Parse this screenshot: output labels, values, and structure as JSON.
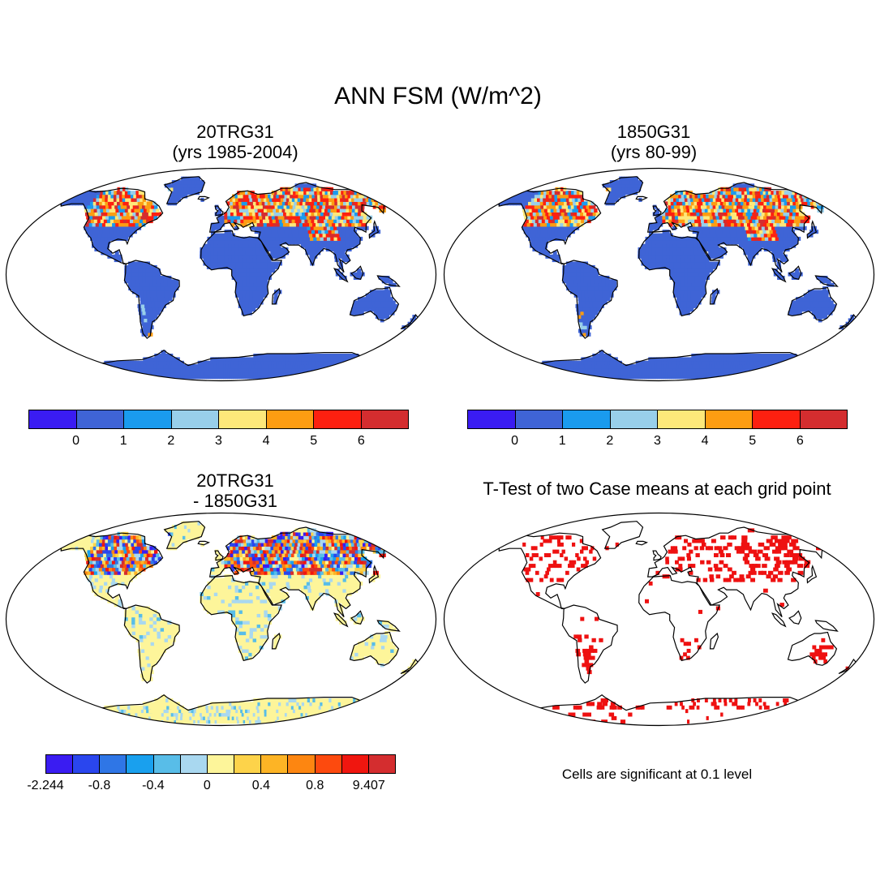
{
  "title": "ANN FSM (W/m^2)",
  "panels": {
    "p1": {
      "title1": "20TRG31",
      "title2": "(yrs 1985-2004)"
    },
    "p2": {
      "title1": "1850G31",
      "title2": "(yrs 80-99)"
    },
    "p3": {
      "title1": "20TRG31",
      "title2": "- 1850G31"
    },
    "p4": {
      "title": "T-Test of two Case means at each grid point",
      "note": "Cells are significant at 0.1 level"
    }
  },
  "colorbar_abs": {
    "colors": [
      "#3a1cf2",
      "#3f64d6",
      "#1a9bee",
      "#98cfea",
      "#fde87a",
      "#fd9d12",
      "#fd2010",
      "#d42d2f"
    ],
    "labels": [
      "0",
      "1",
      "2",
      "3",
      "4",
      "5",
      "6"
    ]
  },
  "colorbar_diff": {
    "colors": [
      "#3a1cf2",
      "#2a46ee",
      "#2f76e6",
      "#19a0ee",
      "#58bde8",
      "#a9d8f0",
      "#fdf59a",
      "#fdd34a",
      "#fdb425",
      "#fd8611",
      "#fd4a0e",
      "#f0160f",
      "#d42d2f"
    ],
    "labels": [
      "-2.244",
      "-0.8",
      "-0.4",
      "0",
      "0.4",
      "0.8",
      "9.407"
    ]
  },
  "colors": {
    "ocean": "#ffffff",
    "land_base": "#3f64d6",
    "diff_base": "#fdf59a",
    "signif": "#ee1111"
  }
}
